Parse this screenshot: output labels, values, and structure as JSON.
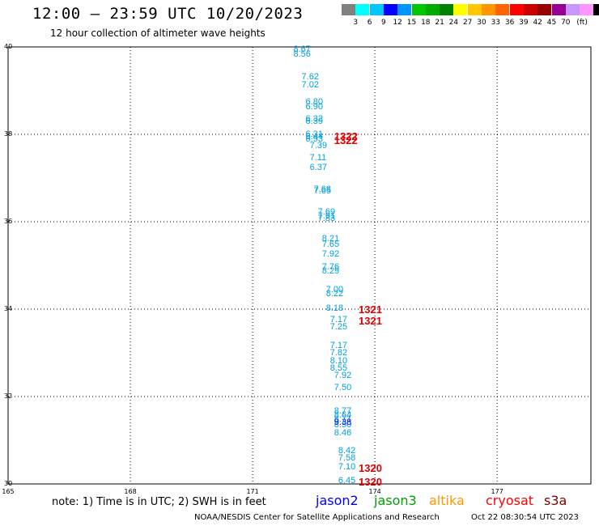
{
  "header": {
    "title": "12:00 – 23:59 UTC 10/20/2023",
    "subtitle": "12 hour collection of altimeter wave heights"
  },
  "legend": {
    "colors": [
      "#808080",
      "#00ffff",
      "#00c8ff",
      "#0000ff",
      "#0096ff",
      "#00c800",
      "#00aa00",
      "#008200",
      "#ffff00",
      "#ffc800",
      "#ff9600",
      "#ff6400",
      "#ff0000",
      "#c80000",
      "#960000",
      "#960096",
      "#c896ff",
      "#ff96ff",
      "#000000"
    ],
    "labels": [
      "3",
      "6",
      "9",
      "12",
      "15",
      "18",
      "21",
      "24",
      "27",
      "30",
      "33",
      "36",
      "39",
      "42",
      "45",
      "70"
    ],
    "unit": "(ft)"
  },
  "map": {
    "lat_labels": [
      "40",
      "38",
      "36",
      "34",
      "32",
      "30"
    ],
    "lon_labels": [
      "165",
      "168",
      "171",
      "174",
      "177"
    ],
    "lat_range": [
      30,
      40
    ],
    "lon_range": [
      165,
      179.3
    ],
    "observations": [
      {
        "value": "8.67",
        "lat": 39.93,
        "lon": 172.0
      },
      {
        "value": "8.56",
        "lat": 39.82,
        "lon": 172.0
      },
      {
        "value": "7.62",
        "lat": 39.3,
        "lon": 172.2
      },
      {
        "value": "7.02",
        "lat": 39.12,
        "lon": 172.2
      },
      {
        "value": "6.80",
        "lat": 38.73,
        "lon": 172.3
      },
      {
        "value": "6.90",
        "lat": 38.62,
        "lon": 172.3
      },
      {
        "value": "6.32",
        "lat": 38.34,
        "lon": 172.3
      },
      {
        "value": "6.39",
        "lat": 38.28,
        "lon": 172.3
      },
      {
        "value": "6.31",
        "lat": 37.99,
        "lon": 172.3
      },
      {
        "value": "6.44",
        "lat": 37.93,
        "lon": 172.3
      },
      {
        "value": "6.93",
        "lat": 37.87,
        "lon": 172.3
      },
      {
        "value": "7.39",
        "lat": 37.72,
        "lon": 172.4
      },
      {
        "value": "7.11",
        "lat": 37.45,
        "lon": 172.4
      },
      {
        "value": "6.37",
        "lat": 37.23,
        "lon": 172.4
      },
      {
        "value": "7.68",
        "lat": 36.73,
        "lon": 172.5
      },
      {
        "value": "7.65",
        "lat": 36.68,
        "lon": 172.5
      },
      {
        "value": "7.69",
        "lat": 36.21,
        "lon": 172.6
      },
      {
        "value": "7.91",
        "lat": 36.12,
        "lon": 172.6
      },
      {
        "value": "7.83",
        "lat": 36.06,
        "lon": 172.6
      },
      {
        "value": "8.21",
        "lat": 35.59,
        "lon": 172.7
      },
      {
        "value": "7.65",
        "lat": 35.47,
        "lon": 172.7
      },
      {
        "value": "7.92",
        "lat": 35.25,
        "lon": 172.7
      },
      {
        "value": "7.76",
        "lat": 34.95,
        "lon": 172.7
      },
      {
        "value": "8.29",
        "lat": 34.86,
        "lon": 172.7
      },
      {
        "value": "7.00",
        "lat": 34.43,
        "lon": 172.8
      },
      {
        "value": "8.22",
        "lat": 34.34,
        "lon": 172.8
      },
      {
        "value": "8.18",
        "lat": 34.0,
        "lon": 172.8
      },
      {
        "value": "7.17",
        "lat": 33.74,
        "lon": 172.9
      },
      {
        "value": "7.25",
        "lat": 33.58,
        "lon": 172.9
      },
      {
        "value": "7.17",
        "lat": 33.15,
        "lon": 172.9
      },
      {
        "value": "7.82",
        "lat": 32.99,
        "lon": 172.9
      },
      {
        "value": "8.10",
        "lat": 32.8,
        "lon": 172.9
      },
      {
        "value": "8.55",
        "lat": 32.63,
        "lon": 172.9
      },
      {
        "value": "7.92",
        "lat": 32.47,
        "lon": 173.0
      },
      {
        "value": "7.50",
        "lat": 32.18,
        "lon": 173.0
      },
      {
        "value": "8.77",
        "lat": 31.64,
        "lon": 173.0
      },
      {
        "value": "8.64",
        "lat": 31.55,
        "lon": 173.0
      },
      {
        "value": "8.71",
        "lat": 31.46,
        "lon": 173.0
      },
      {
        "value": "8.50",
        "lat": 31.34,
        "lon": 173.0
      },
      {
        "value": "8.46",
        "lat": 31.14,
        "lon": 173.0
      },
      {
        "value": "8.42",
        "lat": 30.74,
        "lon": 173.1
      },
      {
        "value": "7.58",
        "lat": 30.58,
        "lon": 173.1
      },
      {
        "value": "7.10",
        "lat": 30.37,
        "lon": 173.1
      },
      {
        "value": "6.45",
        "lat": 30.06,
        "lon": 173.1
      }
    ],
    "blue_observations": [
      {
        "value": "9.38",
        "lat": 31.38,
        "lon": 173.0
      }
    ],
    "pass_labels": [
      {
        "text": "1322",
        "lat": 37.97,
        "lon": 173.0
      },
      {
        "text": "1322",
        "lat": 37.87,
        "lon": 173.0
      },
      {
        "text": "1321",
        "lat": 34.0,
        "lon": 173.6
      },
      {
        "text": "1321",
        "lat": 33.74,
        "lon": 173.6
      },
      {
        "text": "1320",
        "lat": 30.37,
        "lon": 173.6
      },
      {
        "text": "1320",
        "lat": 30.06,
        "lon": 173.6
      }
    ]
  },
  "note": "note:  1) Time is in UTC;  2) SWH is in feet",
  "satellites": [
    {
      "name": "jason2",
      "color": "#0000ff"
    },
    {
      "name": "jason3",
      "color": "#00a000"
    },
    {
      "name": "altika",
      "color": "#ff9600"
    },
    {
      "name": "cryosat",
      "color": "#ff0000"
    },
    {
      "name": "s3a",
      "color": "#800000"
    }
  ],
  "footer": {
    "credit": "NOAA/NESDIS Center for Satellite Applications and Research",
    "timestamp": "Oct 22 08:30:54 UTC 2023"
  }
}
